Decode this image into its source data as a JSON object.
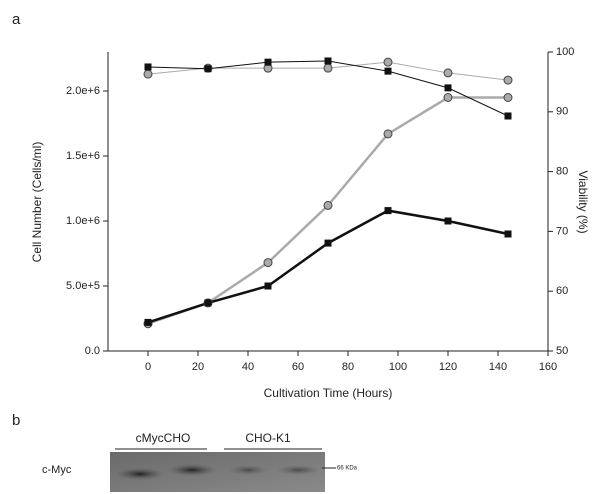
{
  "panel_a": "a",
  "chart_data": {
    "type": "line",
    "xlabel": "Cultivation Time (Hours)",
    "ylabel": "Cell Number (Cells/ml)",
    "y2label": "Viability (%)",
    "x": [
      0,
      24,
      48,
      72,
      96,
      120,
      144
    ],
    "xlim": [
      -16,
      160
    ],
    "xticks": [
      0,
      20,
      40,
      60,
      80,
      100,
      120,
      140,
      160
    ],
    "ylim": [
      0,
      2300000
    ],
    "yticks": [
      {
        "value": 0,
        "label": "0.0"
      },
      {
        "value": 500000,
        "label": "5.0e+5"
      },
      {
        "value": 1000000,
        "label": "1.0e+6"
      },
      {
        "value": 1500000,
        "label": "1.5e+6"
      },
      {
        "value": 2000000,
        "label": "2.0e+6"
      }
    ],
    "y2lim": [
      50,
      100
    ],
    "y2ticks": [
      50,
      60,
      70,
      80,
      90,
      100
    ],
    "series": [
      {
        "color": "#aaaaaa",
        "marker": "circle",
        "line_width": 2.5,
        "values": [
          210000,
          370000,
          680000,
          1120000,
          1670000,
          1950000,
          1950000
        ]
      },
      {
        "color": "#111111",
        "marker": "square",
        "line_width": 2.5,
        "values": [
          220000,
          370000,
          500000,
          830000,
          1080000,
          1000000,
          900000
        ]
      },
      {
        "color": "#aaaaaa",
        "marker": "circle",
        "line_width": 1,
        "axis": "y2",
        "values": [
          96.3,
          97.3,
          97.3,
          97.3,
          98.3,
          96.5,
          95.3
        ]
      },
      {
        "color": "#111111",
        "marker": "square",
        "line_width": 1,
        "axis": "y2",
        "values": [
          97.5,
          97.2,
          98.3,
          98.5,
          96.8,
          94,
          89.3
        ]
      }
    ]
  },
  "panel_b": "b",
  "blot": {
    "lanes": [
      "cMycCHO",
      "CHO-K1"
    ],
    "row_label": "c-Myc",
    "marker": "66 KDa"
  }
}
